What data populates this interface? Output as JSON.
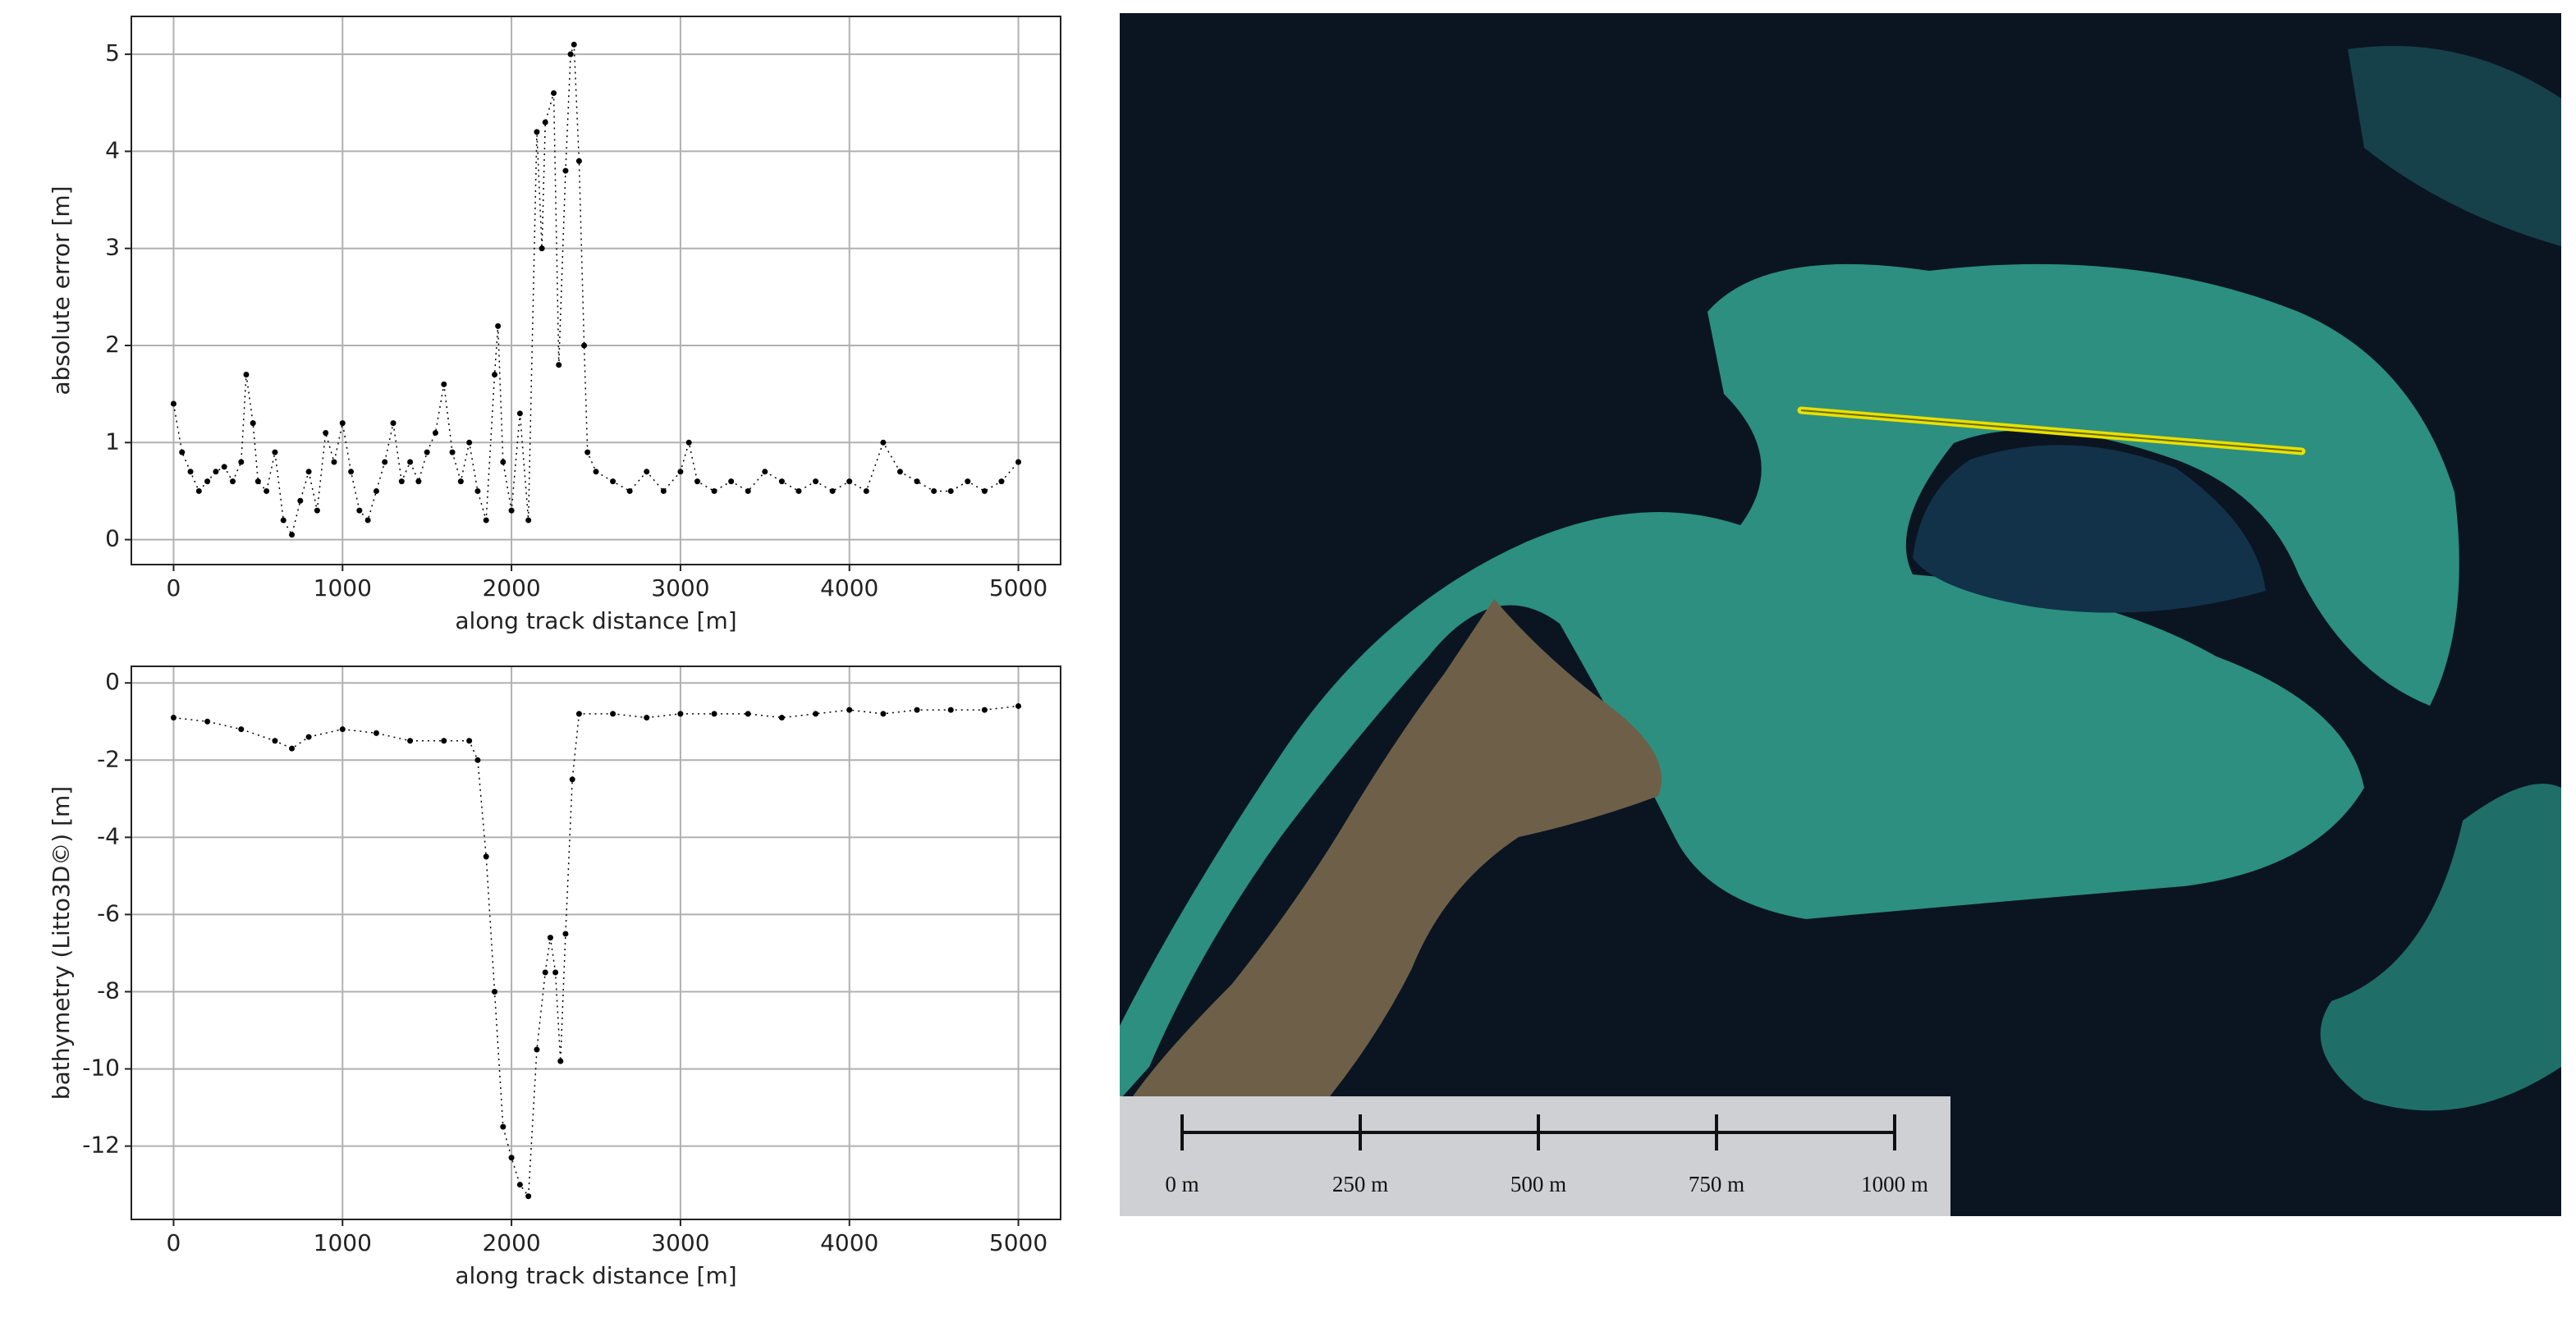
{
  "chart_data": [
    {
      "type": "scatter",
      "ylabel": "absolute error [m]",
      "xlabel": "along track distance [m]",
      "x": [
        0,
        50,
        100,
        150,
        200,
        250,
        300,
        350,
        400,
        430,
        470,
        500,
        550,
        600,
        650,
        700,
        750,
        800,
        850,
        900,
        950,
        1000,
        1050,
        1100,
        1150,
        1200,
        1250,
        1300,
        1350,
        1400,
        1450,
        1500,
        1550,
        1600,
        1650,
        1700,
        1750,
        1800,
        1850,
        1900,
        1920,
        1950,
        2000,
        2050,
        2100,
        2150,
        2180,
        2200,
        2250,
        2280,
        2320,
        2350,
        2370,
        2400,
        2430,
        2450,
        2500,
        2600,
        2700,
        2800,
        2900,
        3000,
        3050,
        3100,
        3200,
        3300,
        3400,
        3500,
        3600,
        3700,
        3800,
        3900,
        4000,
        4100,
        4200,
        4300,
        4400,
        4500,
        4600,
        4700,
        4800,
        4900,
        5000
      ],
      "series": [
        {
          "name": "absolute error",
          "color": "#000000",
          "values": [
            1.4,
            0.9,
            0.7,
            0.5,
            0.6,
            0.7,
            0.75,
            0.6,
            0.8,
            1.7,
            1.2,
            0.6,
            0.5,
            0.9,
            0.2,
            0.05,
            0.4,
            0.7,
            0.3,
            1.1,
            0.8,
            1.2,
            0.7,
            0.3,
            0.2,
            0.5,
            0.8,
            1.2,
            0.6,
            0.8,
            0.6,
            0.9,
            1.1,
            1.6,
            0.9,
            0.6,
            1.0,
            0.5,
            0.2,
            1.7,
            2.2,
            0.8,
            0.3,
            1.3,
            0.2,
            4.2,
            3.0,
            4.3,
            4.6,
            1.8,
            3.8,
            5.0,
            5.1,
            3.9,
            2.0,
            0.9,
            0.7,
            0.6,
            0.5,
            0.7,
            0.5,
            0.7,
            1.0,
            0.6,
            0.5,
            0.6,
            0.5,
            0.7,
            0.6,
            0.5,
            0.6,
            0.5,
            0.6,
            0.5,
            1.0,
            0.7,
            0.6,
            0.5,
            0.5,
            0.6,
            0.5,
            0.6,
            0.8
          ]
        }
      ],
      "xlim": [
        -250,
        5250
      ],
      "xticks": [
        0,
        1000,
        2000,
        3000,
        4000,
        5000
      ],
      "ylim": [
        -0.257,
        5.39
      ],
      "yticks": [
        0,
        1,
        2,
        3,
        4,
        5
      ],
      "grid": true
    },
    {
      "type": "scatter",
      "ylabel": "bathymetry (Litto3D©) [m]",
      "xlabel": "along track distance [m]",
      "x": [
        0,
        200,
        400,
        600,
        700,
        800,
        1000,
        1200,
        1400,
        1600,
        1750,
        1800,
        1850,
        1900,
        1950,
        2000,
        2050,
        2100,
        2150,
        2200,
        2230,
        2260,
        2290,
        2320,
        2360,
        2400,
        2600,
        2800,
        3000,
        3200,
        3400,
        3600,
        3800,
        4000,
        4200,
        4400,
        4600,
        4800,
        5000
      ],
      "series": [
        {
          "name": "bathymetry",
          "color": "#000000",
          "values": [
            -0.9,
            -1.0,
            -1.2,
            -1.5,
            -1.7,
            -1.4,
            -1.2,
            -1.3,
            -1.5,
            -1.5,
            -1.5,
            -2.0,
            -4.5,
            -8,
            -11.5,
            -12.3,
            -13.0,
            -13.3,
            -9.5,
            -7.5,
            -6.6,
            -7.5,
            -9.8,
            -6.5,
            -2.5,
            -0.8,
            -0.8,
            -0.9,
            -0.8,
            -0.8,
            -0.8,
            -0.9,
            -0.8,
            -0.7,
            -0.8,
            -0.7,
            -0.7,
            -0.7,
            -0.6
          ]
        }
      ],
      "xlim": [
        -250,
        5250
      ],
      "xticks": [
        0,
        1000,
        2000,
        3000,
        4000,
        5000
      ],
      "ylim": [
        -13.9,
        0.43
      ],
      "yticks": [
        0,
        -2,
        -4,
        -6,
        -8,
        -10,
        -12
      ],
      "grid": true
    }
  ],
  "map": {
    "scale_labels": [
      "0 m",
      "250 m",
      "500 m",
      "750 m",
      "1000 m"
    ]
  }
}
